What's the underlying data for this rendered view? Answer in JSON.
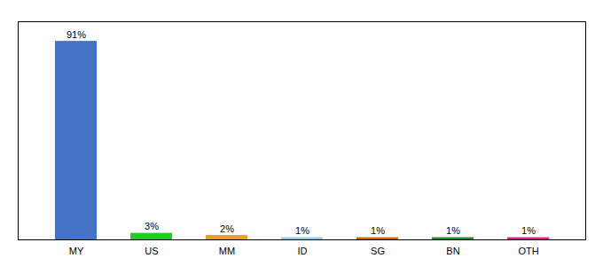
{
  "chart_data": {
    "type": "bar",
    "categories": [
      "MY",
      "US",
      "MM",
      "ID",
      "SG",
      "BN",
      "OTH"
    ],
    "values": [
      91,
      3,
      2,
      1,
      1,
      1,
      1
    ],
    "value_labels": [
      "91%",
      "3%",
      "2%",
      "1%",
      "1%",
      "1%",
      "1%"
    ],
    "colors": [
      "#4472c4",
      "#22cc22",
      "#e8a020",
      "#87ceeb",
      "#cc6600",
      "#1a8c2a",
      "#e91e8c"
    ],
    "data_labels": true,
    "ylim": [
      0,
      100
    ],
    "tick_labels": "x",
    "grid": false
  }
}
